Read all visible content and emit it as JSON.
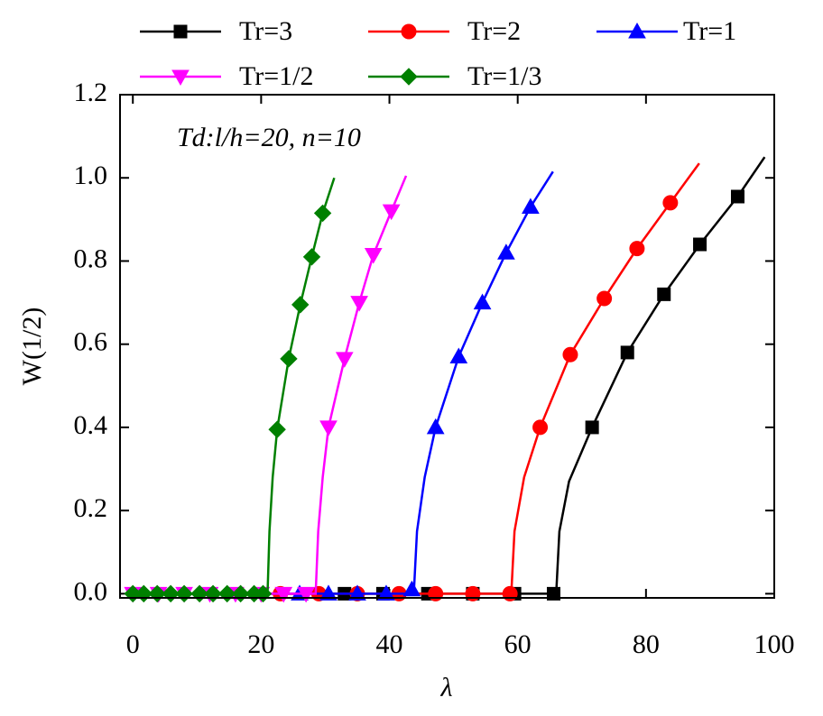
{
  "chart_data": {
    "type": "line",
    "x_label": "λ",
    "y_label": "W(1/2)",
    "annotation": "Td:l/h=20, n=10",
    "xlim": [
      -2,
      100
    ],
    "ylim": [
      -0.01,
      1.2
    ],
    "xticks": [
      0,
      20,
      40,
      60,
      80,
      100
    ],
    "yticks": [
      {
        "value": 0,
        "label": "0.0"
      },
      0.2,
      0.4,
      0.6,
      0.8,
      {
        "value": 1,
        "label": "1.0"
      },
      1.2
    ],
    "series": [
      {
        "name": "Tr=3",
        "color": "#000000",
        "marker": "square",
        "x": [
          33,
          39,
          46,
          53,
          59.5,
          65.6,
          71.6,
          77.1,
          82.8,
          88.4,
          94.3
        ],
        "values": [
          0,
          0,
          0,
          0,
          0,
          0,
          0.4,
          0.58,
          0.72,
          0.84,
          0.955
        ],
        "line_x": [
          0,
          66,
          66.5,
          68,
          71.6,
          77.1,
          82.8,
          88.4,
          94.3,
          98.5
        ],
        "line_values": [
          0,
          0,
          0.15,
          0.27,
          0.4,
          0.58,
          0.72,
          0.84,
          0.955,
          1.05
        ]
      },
      {
        "name": "Tr=2",
        "color": "#ff0000",
        "marker": "circle",
        "x": [
          23,
          29,
          35,
          41.5,
          47.2,
          53,
          58.8,
          63.5,
          68.2,
          73.5,
          78.6,
          83.8
        ],
        "values": [
          0,
          0,
          0,
          0,
          0,
          0,
          0,
          0.4,
          0.575,
          0.71,
          0.83,
          0.94
        ],
        "line_x": [
          0,
          59,
          59.5,
          61,
          63.5,
          68.2,
          73.5,
          78.6,
          83.8,
          88.3
        ],
        "line_values": [
          0,
          0,
          0.15,
          0.28,
          0.4,
          0.575,
          0.71,
          0.83,
          0.94,
          1.035
        ]
      },
      {
        "name": "Tr=1",
        "color": "#0000ff",
        "marker": "triangle-up",
        "x": [
          26,
          30.5,
          35,
          39.5,
          43.5,
          47.2,
          50.8,
          54.5,
          58.2,
          62
        ],
        "values": [
          0,
          0,
          0,
          0,
          0.01,
          0.4,
          0.57,
          0.7,
          0.82,
          0.93
        ],
        "line_x": [
          0,
          43.8,
          44.3,
          45.5,
          47.2,
          50.8,
          54.5,
          58.2,
          62,
          65.5
        ],
        "line_values": [
          0,
          0,
          0.15,
          0.28,
          0.4,
          0.57,
          0.7,
          0.82,
          0.93,
          1.015
        ]
      },
      {
        "name": "Tr=1/2",
        "color": "#ff00ff",
        "marker": "triangle-down",
        "x": [
          0,
          4,
          8,
          12,
          16,
          20,
          23.5,
          27,
          30.5,
          33,
          35.3,
          37.5,
          40.3
        ],
        "values": [
          0,
          0,
          0,
          0,
          0,
          0,
          0,
          0,
          0.4,
          0.565,
          0.7,
          0.815,
          0.92
        ],
        "line_x": [
          0,
          28.5,
          28.9,
          29.6,
          30.5,
          33,
          35.3,
          37.5,
          40.3,
          42.6
        ],
        "line_values": [
          0,
          0,
          0.15,
          0.28,
          0.4,
          0.565,
          0.7,
          0.815,
          0.92,
          1.005
        ]
      },
      {
        "name": "Tr=1/3",
        "color": "#008000",
        "marker": "diamond",
        "x": [
          0,
          1.7,
          3.8,
          5.9,
          8,
          10.4,
          12.5,
          14.7,
          16.8,
          18.9,
          20.3,
          22.5,
          24.3,
          26.1,
          27.9,
          29.6
        ],
        "values": [
          0,
          0,
          0,
          0,
          0,
          0,
          0,
          0,
          0,
          0,
          0,
          0.395,
          0.565,
          0.695,
          0.81,
          0.915
        ],
        "line_x": [
          0,
          21,
          21.3,
          21.8,
          22.5,
          24.3,
          26.1,
          27.9,
          29.6,
          31.4
        ],
        "line_values": [
          0,
          0,
          0.15,
          0.28,
          0.395,
          0.565,
          0.695,
          0.81,
          0.915,
          1.0
        ]
      }
    ]
  }
}
